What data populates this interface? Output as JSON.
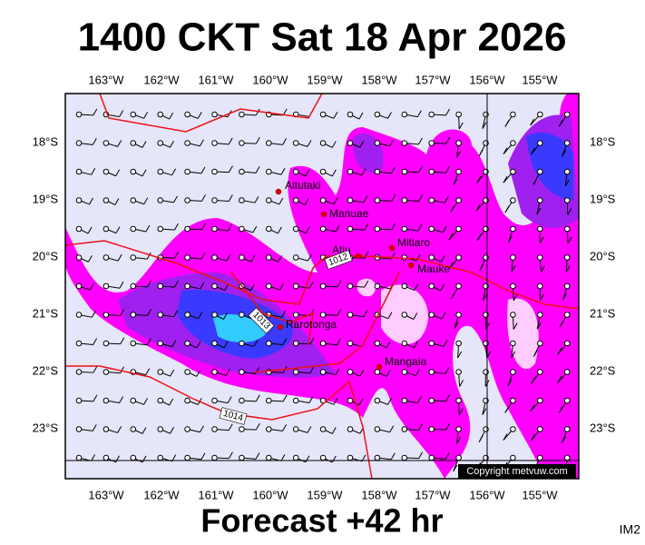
{
  "title": "1400 CKT Sat 18 Apr 2026",
  "footer": "Forecast +42 hr",
  "code": "IM2",
  "copyright": "Copyright metvuw.com",
  "longitude_labels": [
    "163°W",
    "162°W",
    "161°W",
    "160°W",
    "159°W",
    "158°W",
    "157°W",
    "156°W",
    "155°W"
  ],
  "latitude_labels": [
    "18°S",
    "19°S",
    "20°S",
    "21°S",
    "22°S",
    "23°S"
  ],
  "places": [
    "Aitutaki",
    "Manuae",
    "Atiu",
    "Mitiaro",
    "Mauke",
    "Rarotonga",
    "Mangaia"
  ],
  "isobar_labels": [
    "1012",
    "1013",
    "1014"
  ]
}
